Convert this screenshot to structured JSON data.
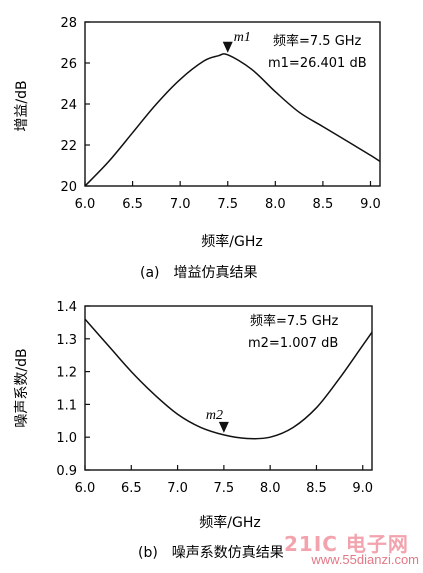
{
  "chart_data": [
    {
      "type": "line",
      "caption": "(a)　增益仿真结果",
      "xlabel": "频率/GHz",
      "ylabel": "增益/dB",
      "xlim": [
        6.0,
        9.1
      ],
      "ylim": [
        20,
        28
      ],
      "x_ticks": [
        "6.0",
        "6.5",
        "7.0",
        "7.5",
        "8.0",
        "8.5",
        "9.0"
      ],
      "y_ticks": [
        "20",
        "22",
        "24",
        "26",
        "28"
      ],
      "grid": false,
      "series": [
        {
          "x": [
            6.0,
            6.25,
            6.5,
            6.75,
            7.0,
            7.25,
            7.4,
            7.5,
            7.75,
            8.0,
            8.25,
            8.5,
            8.75,
            9.0,
            9.1
          ],
          "y": [
            20.0,
            21.2,
            22.6,
            24.0,
            25.2,
            26.1,
            26.35,
            26.401,
            25.7,
            24.6,
            23.6,
            22.9,
            22.2,
            21.5,
            21.2
          ]
        }
      ],
      "marker": {
        "name": "m1",
        "x": 7.5,
        "y": 26.401,
        "annotation_line1": "频率=7.5 GHz",
        "annotation_line2": "m1=26.401 dB"
      }
    },
    {
      "type": "line",
      "caption": "(b)　噪声系数仿真结果",
      "xlabel": "频率/GHz",
      "ylabel": "噪声系数/dB",
      "xlim": [
        6.0,
        9.1
      ],
      "ylim": [
        0.9,
        1.4
      ],
      "x_ticks": [
        "6.0",
        "6.5",
        "7.0",
        "7.5",
        "8.0",
        "8.5",
        "9.0"
      ],
      "y_ticks": [
        "0.9",
        "1.0",
        "1.1",
        "1.2",
        "1.3",
        "1.4"
      ],
      "grid": false,
      "series": [
        {
          "x": [
            6.0,
            6.25,
            6.5,
            6.75,
            7.0,
            7.25,
            7.5,
            7.75,
            8.0,
            8.25,
            8.5,
            8.75,
            9.0,
            9.1
          ],
          "y": [
            1.36,
            1.28,
            1.2,
            1.13,
            1.07,
            1.03,
            1.007,
            0.996,
            1.0,
            1.03,
            1.09,
            1.18,
            1.28,
            1.32
          ]
        }
      ],
      "marker": {
        "name": "m2",
        "x": 7.5,
        "y": 1.007,
        "annotation_line1": "频率=7.5 GHz",
        "annotation_line2": "m2=1.007 dB"
      }
    }
  ],
  "watermark": {
    "logo": "21IC 电子网",
    "url": "www.55dianzi.com"
  }
}
